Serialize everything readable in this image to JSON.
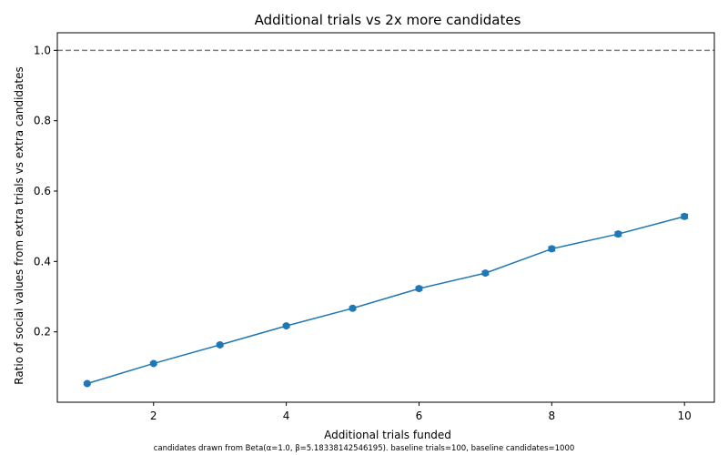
{
  "chart_data": {
    "type": "line",
    "title": "Additional trials vs 2x more candidates",
    "xlabel": "Additional trials funded",
    "ylabel": "Ratio of social values from extra trials vs extra candidates",
    "caption": "candidates drawn from Beta(α=1.0, β=5.18338142546195). baseline trials=100, baseline candidates=1000",
    "xlim": [
      0.55,
      10.45
    ],
    "ylim": [
      0.0,
      1.05
    ],
    "x_ticks": [
      2,
      4,
      6,
      8,
      10
    ],
    "y_ticks": [
      0.2,
      0.4,
      0.6,
      0.8,
      1.0
    ],
    "x_tick_labels": [
      "2",
      "4",
      "6",
      "8",
      "10"
    ],
    "y_tick_labels": [
      "0.2",
      "0.4",
      "0.6",
      "0.8",
      "1.0"
    ],
    "reference_line": {
      "y": 1.0,
      "style": "dashed",
      "color": "#808080"
    },
    "grid": false,
    "series": [
      {
        "color": "#1f77b4",
        "marker": "circle",
        "x": [
          1,
          2,
          3,
          4,
          5,
          6,
          7,
          8,
          9,
          10
        ],
        "y": [
          0.053,
          0.11,
          0.163,
          0.217,
          0.267,
          0.323,
          0.367,
          0.436,
          0.478,
          0.528
        ],
        "error": [
          0.003,
          0.003,
          0.004,
          0.004,
          0.004,
          0.005,
          0.005,
          0.006,
          0.006,
          0.006
        ]
      }
    ]
  }
}
